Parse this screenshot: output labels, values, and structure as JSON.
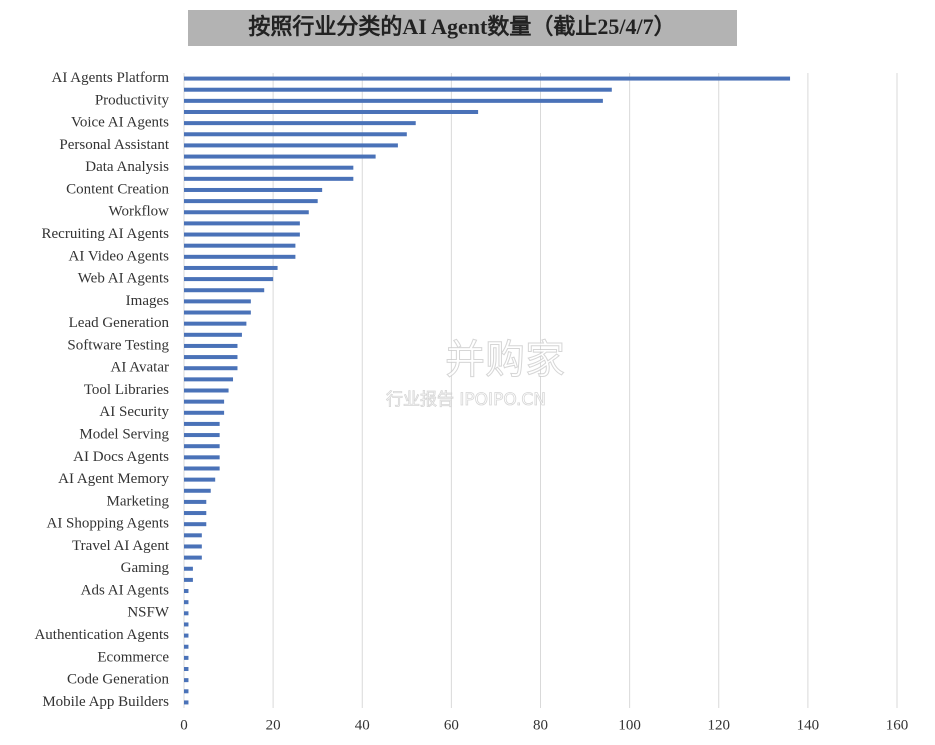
{
  "chart_data": {
    "type": "bar",
    "orientation": "horizontal",
    "title": "按照行业分类的AI Agent数量（截止25/4/7）",
    "watermark": [
      "并购家",
      "行业报告 IPOIPO.CN"
    ],
    "categories": [
      "AI Agents Platform",
      null,
      "Productivity",
      null,
      "Voice AI Agents",
      null,
      "Personal Assistant",
      null,
      "Data Analysis",
      null,
      "Content Creation",
      null,
      "Workflow",
      null,
      "Recruiting AI Agents",
      null,
      "AI Video Agents",
      null,
      "Web AI Agents",
      null,
      "Images",
      null,
      "Lead Generation",
      null,
      "Software Testing",
      null,
      "AI Avatar",
      null,
      "Tool Libraries",
      null,
      "AI Security",
      null,
      "Model Serving",
      null,
      "AI Docs Agents",
      null,
      "AI Agent Memory",
      null,
      "Marketing",
      null,
      "AI Shopping Agents",
      null,
      "Travel AI Agent",
      null,
      "Gaming",
      null,
      "Ads AI Agents",
      null,
      "NSFW",
      null,
      "Authentication Agents",
      null,
      "Ecommerce",
      null,
      "Code Generation",
      null,
      "Mobile App Builders"
    ],
    "values": [
      136,
      96,
      94,
      66,
      52,
      50,
      48,
      43,
      38,
      38,
      31,
      30,
      28,
      26,
      26,
      25,
      25,
      21,
      20,
      18,
      15,
      15,
      14,
      13,
      12,
      12,
      12,
      11,
      10,
      9,
      9,
      8,
      8,
      8,
      8,
      8,
      7,
      6,
      5,
      5,
      5,
      4,
      4,
      4,
      2,
      2,
      1,
      1,
      1,
      1,
      1,
      1,
      1,
      1,
      1,
      1,
      1
    ],
    "color": "#4a72b8",
    "xlim": [
      0,
      160
    ],
    "xticks": [
      0,
      20,
      40,
      60,
      80,
      100,
      120,
      140,
      160
    ],
    "grid": true
  }
}
